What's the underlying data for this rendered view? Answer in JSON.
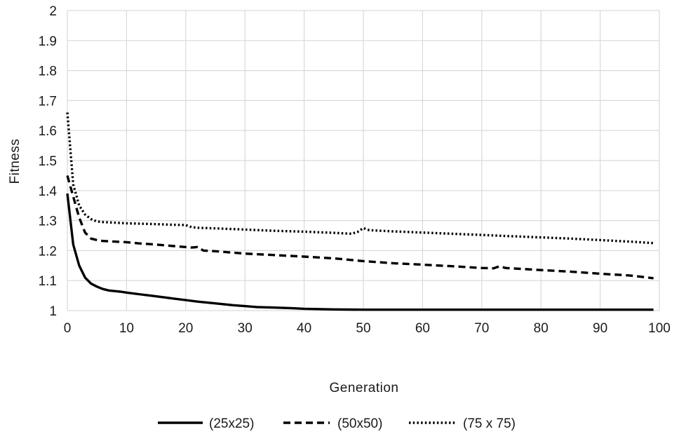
{
  "chart_data": {
    "type": "line",
    "title": "",
    "xlabel": "Generation",
    "ylabel": "Fitness",
    "xlim": [
      0,
      100
    ],
    "ylim": [
      1,
      2
    ],
    "xticks": [
      0,
      10,
      20,
      30,
      40,
      50,
      60,
      70,
      80,
      90,
      100
    ],
    "yticks": [
      1,
      1.1,
      1.2,
      1.3,
      1.4,
      1.5,
      1.6,
      1.7,
      1.8,
      1.9,
      2
    ],
    "xtick_labels": [
      "0",
      "10",
      "20",
      "30",
      "40",
      "50",
      "60",
      "70",
      "80",
      "90",
      "100"
    ],
    "ytick_labels": [
      "1",
      "1.1",
      "1.2",
      "1.3",
      "1.4",
      "1.5",
      "1.6",
      "1.7",
      "1.8",
      "1.9",
      "2"
    ],
    "grid": true,
    "legend_position": "bottom",
    "series": [
      {
        "name": "(25x25)",
        "style": "solid",
        "color": "#000000",
        "x": [
          0,
          1,
          2,
          3,
          4,
          5,
          6,
          7,
          8,
          9,
          10,
          12,
          14,
          16,
          18,
          20,
          22,
          25,
          28,
          30,
          32,
          35,
          38,
          40,
          45,
          50,
          60,
          70,
          80,
          90,
          99
        ],
        "y": [
          1.39,
          1.22,
          1.15,
          1.11,
          1.09,
          1.08,
          1.072,
          1.067,
          1.065,
          1.063,
          1.06,
          1.055,
          1.05,
          1.045,
          1.04,
          1.035,
          1.03,
          1.024,
          1.018,
          1.015,
          1.012,
          1.01,
          1.008,
          1.006,
          1.004,
          1.003,
          1.003,
          1.003,
          1.003,
          1.003,
          1.003
        ]
      },
      {
        "name": "(50x50)",
        "style": "dashed",
        "color": "#000000",
        "x": [
          0,
          1,
          2,
          3,
          4,
          5,
          6,
          8,
          10,
          12,
          15,
          18,
          21,
          22,
          23,
          25,
          30,
          35,
          40,
          45,
          50,
          55,
          60,
          65,
          70,
          72,
          73,
          74,
          80,
          85,
          90,
          95,
          99
        ],
        "y": [
          1.45,
          1.38,
          1.31,
          1.26,
          1.24,
          1.235,
          1.232,
          1.23,
          1.228,
          1.224,
          1.22,
          1.215,
          1.21,
          1.212,
          1.2,
          1.198,
          1.19,
          1.185,
          1.18,
          1.174,
          1.165,
          1.158,
          1.153,
          1.148,
          1.142,
          1.141,
          1.148,
          1.142,
          1.135,
          1.13,
          1.123,
          1.117,
          1.108
        ]
      },
      {
        "name": "(75 x 75)",
        "style": "dotted",
        "color": "#000000",
        "x": [
          0,
          1,
          2,
          3,
          4,
          5,
          6,
          8,
          10,
          12,
          15,
          18,
          20,
          21,
          22,
          25,
          30,
          35,
          40,
          45,
          48,
          49,
          50,
          51,
          55,
          60,
          65,
          70,
          75,
          80,
          85,
          90,
          95,
          99
        ],
        "y": [
          1.66,
          1.42,
          1.35,
          1.32,
          1.305,
          1.297,
          1.295,
          1.293,
          1.291,
          1.29,
          1.288,
          1.286,
          1.285,
          1.278,
          1.276,
          1.274,
          1.27,
          1.266,
          1.263,
          1.259,
          1.256,
          1.262,
          1.275,
          1.268,
          1.264,
          1.26,
          1.256,
          1.252,
          1.248,
          1.244,
          1.24,
          1.235,
          1.23,
          1.225
        ]
      }
    ]
  }
}
